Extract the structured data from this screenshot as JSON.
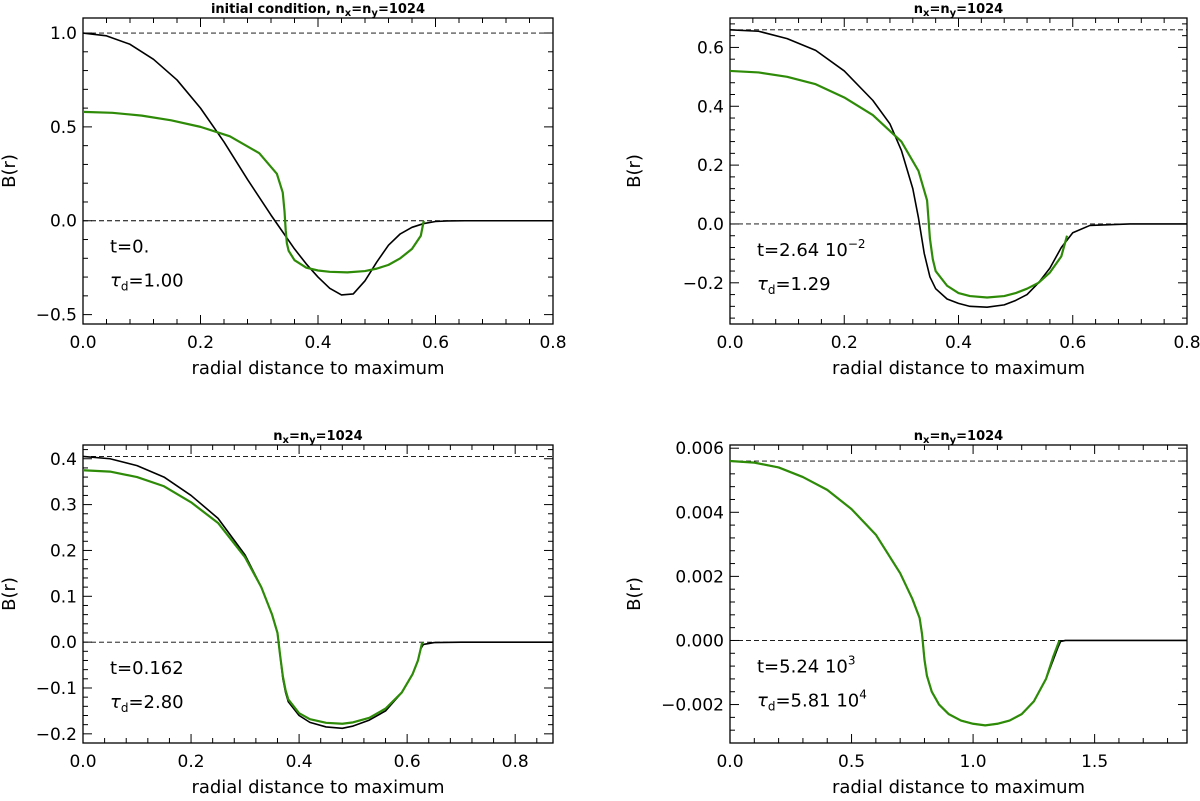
{
  "colors": {
    "black_curve": "#000000",
    "green_curve": "#2e8b08",
    "frame": "#000000"
  },
  "chart_data": [
    {
      "type": "line",
      "title": {
        "prefix": "initial condition, n",
        "sub1": "x",
        "mid": "=n",
        "sub2": "y",
        "suffix": "=1024"
      },
      "xlabel": "radial distance to maximum",
      "ylabel": "B(r)",
      "xlim": [
        0.0,
        0.8
      ],
      "ylim": [
        -0.55,
        1.08
      ],
      "xticks": [
        0.0,
        0.2,
        0.4,
        0.6,
        0.8
      ],
      "xtick_labels": [
        "0.0",
        "0.2",
        "0.4",
        "0.6",
        "0.8"
      ],
      "yticks": [
        -0.5,
        0.0,
        0.5,
        1.0
      ],
      "ytick_labels": [
        "−0.5",
        "0.0",
        "0.5",
        "1.0"
      ],
      "dashed_lines": [
        1.0,
        0.0
      ],
      "annotations": {
        "t": {
          "text": "t=0.",
          "sup": ""
        },
        "tau": {
          "text": "=1.00",
          "sup": ""
        }
      },
      "series": [
        {
          "name": "black",
          "color": "#000000",
          "x": [
            0,
            0.04,
            0.08,
            0.12,
            0.16,
            0.2,
            0.24,
            0.28,
            0.32,
            0.34,
            0.36,
            0.38,
            0.4,
            0.42,
            0.44,
            0.46,
            0.48,
            0.5,
            0.52,
            0.54,
            0.56,
            0.58,
            0.6,
            0.62,
            0.65,
            0.7,
            0.8
          ],
          "y": [
            1.0,
            0.985,
            0.94,
            0.86,
            0.75,
            0.6,
            0.42,
            0.22,
            0.03,
            -0.06,
            -0.15,
            -0.23,
            -0.3,
            -0.36,
            -0.395,
            -0.39,
            -0.32,
            -0.22,
            -0.13,
            -0.07,
            -0.035,
            -0.015,
            -0.004,
            -0.001,
            0.0,
            0.0,
            0.0
          ]
        },
        {
          "name": "green",
          "color": "#2e8b08",
          "x": [
            0,
            0.05,
            0.1,
            0.15,
            0.2,
            0.25,
            0.3,
            0.33,
            0.34,
            0.343,
            0.345,
            0.347,
            0.35,
            0.36,
            0.38,
            0.4,
            0.42,
            0.45,
            0.48,
            0.5,
            0.52,
            0.54,
            0.56,
            0.575,
            0.58
          ],
          "y": [
            0.58,
            0.575,
            0.56,
            0.535,
            0.5,
            0.45,
            0.36,
            0.25,
            0.15,
            0.05,
            -0.05,
            -0.12,
            -0.16,
            -0.21,
            -0.25,
            -0.265,
            -0.272,
            -0.275,
            -0.268,
            -0.255,
            -0.235,
            -0.2,
            -0.15,
            -0.08,
            0.0
          ]
        }
      ]
    },
    {
      "type": "line",
      "title": {
        "prefix": "n",
        "sub1": "x",
        "mid": "=n",
        "sub2": "y",
        "suffix": "=1024"
      },
      "xlabel": "radial distance to maximum",
      "ylabel": "B(r)",
      "xlim": [
        0.0,
        0.8
      ],
      "ylim": [
        -0.34,
        0.7
      ],
      "xticks": [
        0.0,
        0.2,
        0.4,
        0.6,
        0.8
      ],
      "xtick_labels": [
        "0.0",
        "0.2",
        "0.4",
        "0.6",
        "0.8"
      ],
      "yticks": [
        -0.2,
        0.0,
        0.2,
        0.4,
        0.6
      ],
      "ytick_labels": [
        "−0.2",
        "0.0",
        "0.2",
        "0.4",
        "0.6"
      ],
      "dashed_lines": [
        0.66,
        0.0
      ],
      "annotations": {
        "t": {
          "text": "t=2.64  10",
          "sup": "−2"
        },
        "tau": {
          "text": "=1.29",
          "sup": ""
        }
      },
      "series": [
        {
          "name": "black",
          "color": "#000000",
          "x": [
            0,
            0.05,
            0.1,
            0.15,
            0.2,
            0.25,
            0.28,
            0.3,
            0.32,
            0.33,
            0.34,
            0.345,
            0.35,
            0.36,
            0.38,
            0.4,
            0.42,
            0.45,
            0.48,
            0.5,
            0.52,
            0.54,
            0.56,
            0.58,
            0.6,
            0.63,
            0.7,
            0.8
          ],
          "y": [
            0.66,
            0.655,
            0.63,
            0.59,
            0.52,
            0.42,
            0.34,
            0.25,
            0.12,
            0.02,
            -0.1,
            -0.14,
            -0.18,
            -0.22,
            -0.255,
            -0.27,
            -0.28,
            -0.283,
            -0.275,
            -0.26,
            -0.24,
            -0.2,
            -0.15,
            -0.08,
            -0.03,
            -0.005,
            0.0,
            0.0
          ]
        },
        {
          "name": "green",
          "color": "#2e8b08",
          "x": [
            0,
            0.05,
            0.1,
            0.15,
            0.2,
            0.25,
            0.3,
            0.33,
            0.345,
            0.35,
            0.355,
            0.36,
            0.38,
            0.4,
            0.42,
            0.45,
            0.48,
            0.5,
            0.52,
            0.54,
            0.56,
            0.58,
            0.59
          ],
          "y": [
            0.52,
            0.515,
            0.5,
            0.475,
            0.43,
            0.37,
            0.28,
            0.18,
            0.08,
            -0.05,
            -0.12,
            -0.16,
            -0.21,
            -0.235,
            -0.245,
            -0.25,
            -0.245,
            -0.235,
            -0.22,
            -0.2,
            -0.165,
            -0.11,
            -0.04
          ]
        }
      ]
    },
    {
      "type": "line",
      "title": {
        "prefix": "n",
        "sub1": "x",
        "mid": "=n",
        "sub2": "y",
        "suffix": "=1024"
      },
      "xlabel": "radial distance to maximum",
      "ylabel": "B(r)",
      "xlim": [
        0.0,
        0.87
      ],
      "ylim": [
        -0.22,
        0.43
      ],
      "xticks": [
        0.0,
        0.2,
        0.4,
        0.6,
        0.8
      ],
      "xtick_labels": [
        "0.0",
        "0.2",
        "0.4",
        "0.6",
        "0.8"
      ],
      "yticks": [
        -0.2,
        -0.1,
        0.0,
        0.1,
        0.2,
        0.3,
        0.4
      ],
      "ytick_labels": [
        "−0.2",
        "−0.1",
        "0.0",
        "0.1",
        "0.2",
        "0.3",
        "0.4"
      ],
      "dashed_lines": [
        0.405,
        0.0
      ],
      "annotations": {
        "t": {
          "text": "t=0.162",
          "sup": ""
        },
        "tau": {
          "text": "=2.80",
          "sup": ""
        }
      },
      "series": [
        {
          "name": "black",
          "color": "#000000",
          "x": [
            0,
            0.05,
            0.1,
            0.15,
            0.2,
            0.25,
            0.3,
            0.33,
            0.35,
            0.36,
            0.365,
            0.37,
            0.375,
            0.38,
            0.4,
            0.42,
            0.45,
            0.48,
            0.5,
            0.53,
            0.56,
            0.59,
            0.61,
            0.62,
            0.625,
            0.63,
            0.65,
            0.7,
            0.87
          ],
          "y": [
            0.405,
            0.4,
            0.385,
            0.36,
            0.32,
            0.27,
            0.19,
            0.12,
            0.06,
            0.02,
            -0.03,
            -0.08,
            -0.11,
            -0.13,
            -0.16,
            -0.175,
            -0.185,
            -0.188,
            -0.183,
            -0.17,
            -0.15,
            -0.11,
            -0.07,
            -0.04,
            -0.015,
            -0.005,
            -0.001,
            0.0,
            0.0
          ]
        },
        {
          "name": "green",
          "color": "#2e8b08",
          "x": [
            0,
            0.05,
            0.1,
            0.15,
            0.2,
            0.25,
            0.3,
            0.33,
            0.35,
            0.36,
            0.365,
            0.37,
            0.375,
            0.38,
            0.4,
            0.42,
            0.45,
            0.48,
            0.5,
            0.53,
            0.56,
            0.59,
            0.61,
            0.62,
            0.628
          ],
          "y": [
            0.375,
            0.372,
            0.36,
            0.34,
            0.305,
            0.26,
            0.185,
            0.12,
            0.06,
            0.02,
            -0.03,
            -0.075,
            -0.105,
            -0.125,
            -0.155,
            -0.168,
            -0.176,
            -0.178,
            -0.175,
            -0.165,
            -0.145,
            -0.11,
            -0.07,
            -0.04,
            0.0
          ]
        }
      ]
    },
    {
      "type": "line",
      "title": {
        "prefix": "n",
        "sub1": "x",
        "mid": "=n",
        "sub2": "y",
        "suffix": "=1024"
      },
      "xlabel": "radial distance to maximum",
      "ylabel": "B(r)",
      "xlim": [
        0.0,
        1.88
      ],
      "ylim": [
        -0.0032,
        0.0061
      ],
      "xticks": [
        0.0,
        0.5,
        1.0,
        1.5
      ],
      "xtick_labels": [
        "0.0",
        "0.5",
        "1.0",
        "1.5"
      ],
      "yticks": [
        -0.002,
        0.0,
        0.002,
        0.004,
        0.006
      ],
      "ytick_labels": [
        "−0.002",
        "0.000",
        "0.002",
        "0.004",
        "0.006"
      ],
      "dashed_lines": [
        0.0056,
        0.0
      ],
      "annotations": {
        "t": {
          "text": "t=5.24  10",
          "sup": "3"
        },
        "tau": {
          "text": "=5.81  10",
          "sup": "4"
        }
      },
      "series": [
        {
          "name": "black",
          "color": "#000000",
          "x": [
            0,
            0.1,
            0.2,
            0.3,
            0.4,
            0.5,
            0.6,
            0.7,
            0.75,
            0.78,
            0.79,
            0.8,
            0.81,
            0.83,
            0.86,
            0.9,
            0.95,
            1.0,
            1.05,
            1.1,
            1.15,
            1.2,
            1.25,
            1.3,
            1.33,
            1.35,
            1.36,
            1.38,
            1.88
          ],
          "y": [
            0.0056,
            0.00555,
            0.0054,
            0.0051,
            0.0047,
            0.0041,
            0.0033,
            0.0021,
            0.0013,
            0.0007,
            0.0002,
            -0.0006,
            -0.0011,
            -0.0016,
            -0.002,
            -0.0023,
            -0.0025,
            -0.0026,
            -0.00265,
            -0.0026,
            -0.0025,
            -0.0023,
            -0.0019,
            -0.0012,
            -0.0006,
            -0.0002,
            -3e-05,
            0.0,
            0.0
          ]
        },
        {
          "name": "green",
          "color": "#2e8b08",
          "x": [
            0,
            0.1,
            0.2,
            0.3,
            0.4,
            0.5,
            0.6,
            0.7,
            0.75,
            0.78,
            0.79,
            0.8,
            0.81,
            0.83,
            0.86,
            0.9,
            0.95,
            1.0,
            1.05,
            1.1,
            1.15,
            1.2,
            1.25,
            1.3,
            1.33,
            1.355
          ],
          "y": [
            0.0056,
            0.00555,
            0.0054,
            0.0051,
            0.0047,
            0.0041,
            0.0033,
            0.0021,
            0.0013,
            0.0007,
            0.0002,
            -0.0006,
            -0.0011,
            -0.0016,
            -0.002,
            -0.0023,
            -0.0025,
            -0.0026,
            -0.00265,
            -0.0026,
            -0.0025,
            -0.0023,
            -0.0019,
            -0.0012,
            -0.0005,
            0.0
          ]
        }
      ]
    }
  ]
}
